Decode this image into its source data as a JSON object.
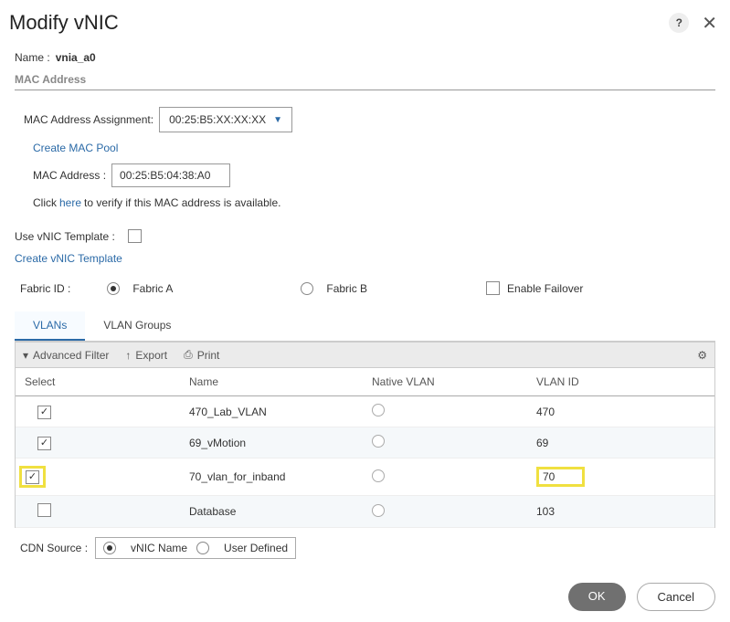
{
  "dialog": {
    "title": "Modify vNIC",
    "help_symbol": "?",
    "close_symbol": "✕"
  },
  "name_field": {
    "label": "Name :",
    "value": "vnia_a0"
  },
  "mac_section": {
    "heading": "MAC Address",
    "assignment_label": "MAC Address Assignment:",
    "assignment_value": "00:25:B5:XX:XX:XX",
    "create_pool_link": "Create MAC Pool",
    "address_label": "MAC Address :",
    "address_value": "00:25:B5:04:38:A0",
    "verify_prefix": "Click ",
    "verify_link": "here",
    "verify_suffix": " to verify if this MAC address is available."
  },
  "template": {
    "use_label": "Use vNIC Template :",
    "create_link": "Create vNIC Template"
  },
  "fabric": {
    "label": "Fabric ID :",
    "option_a": "Fabric A",
    "option_b": "Fabric B",
    "failover_label": "Enable Failover"
  },
  "tabs": {
    "vlans": "VLANs",
    "groups": "VLAN Groups"
  },
  "toolbar": {
    "filter": "Advanced Filter",
    "export": "Export",
    "print": "Print"
  },
  "table": {
    "headers": {
      "select": "Select",
      "name": "Name",
      "native": "Native VLAN",
      "id": "VLAN ID"
    },
    "rows": [
      {
        "checked": true,
        "name": "470_Lab_VLAN",
        "id": "470",
        "highlight": false
      },
      {
        "checked": true,
        "name": "69_vMotion",
        "id": "69",
        "highlight": false
      },
      {
        "checked": true,
        "name": "70_vlan_for_inband",
        "id": "70",
        "highlight": true
      },
      {
        "checked": false,
        "name": "Database",
        "id": "103",
        "highlight": false
      }
    ]
  },
  "cdn": {
    "label": "CDN Source :",
    "opt1": "vNIC Name",
    "opt2": "User Defined"
  },
  "footer": {
    "ok": "OK",
    "cancel": "Cancel"
  }
}
